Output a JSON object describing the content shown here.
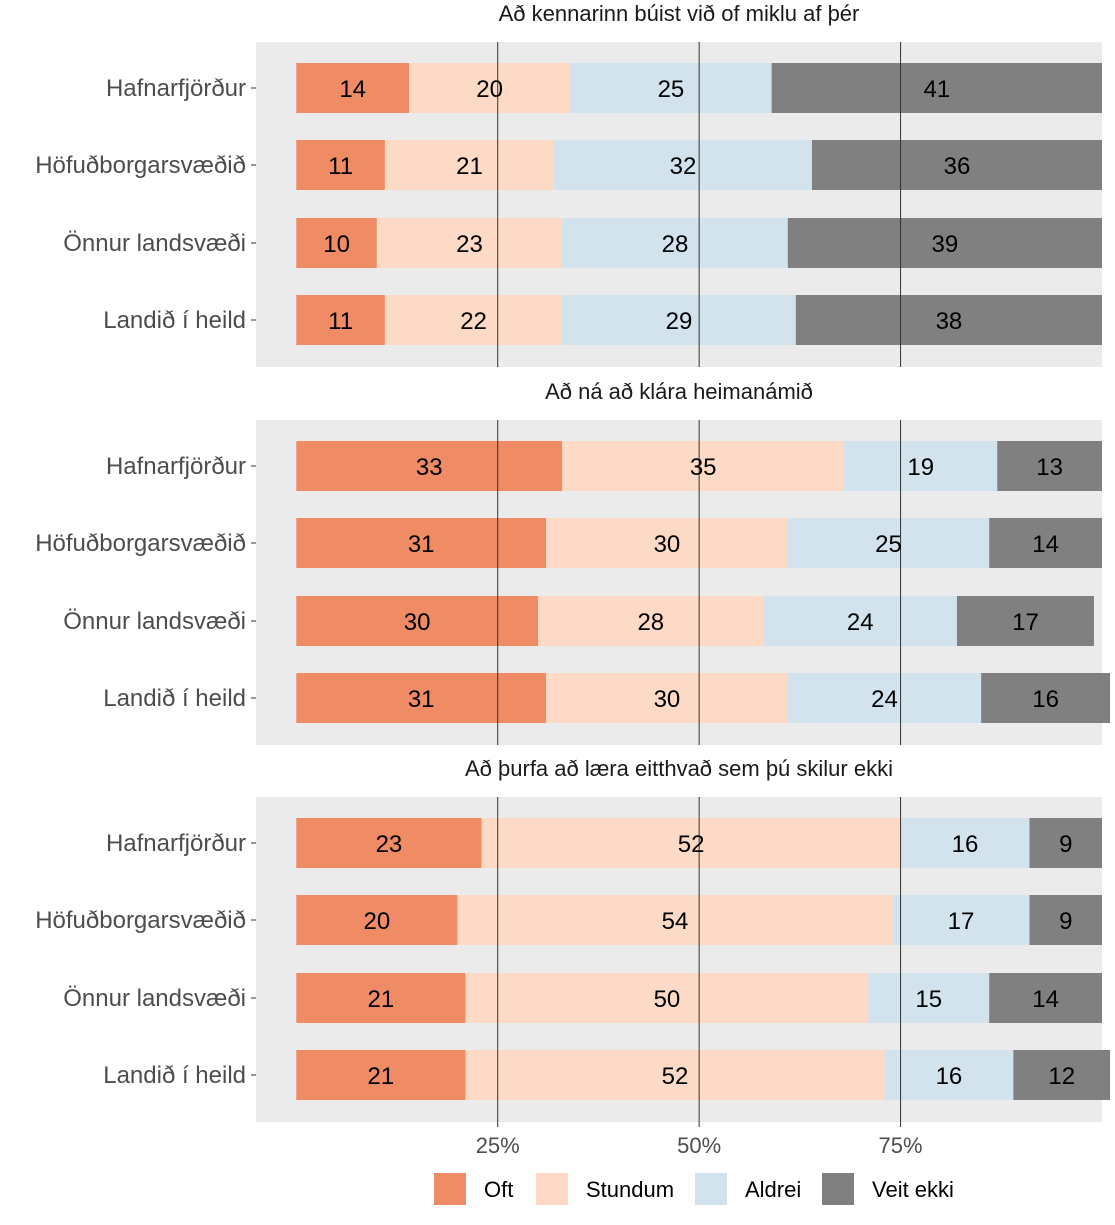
{
  "chart_data": {
    "type": "bar",
    "orientation": "horizontal",
    "stacked": true,
    "percent_scale": true,
    "categories": [
      "Hafnarfjörður",
      "Höfuðborgarsvæðið",
      "Önnur landsvæði",
      "Landið í heild"
    ],
    "xticks": [
      "25%",
      "50%",
      "75%"
    ],
    "xtick_values": [
      25,
      50,
      75
    ],
    "xlim": [
      -5,
      100
    ],
    "grid": "vertical major lines at tick positions",
    "legend": {
      "position": "bottom",
      "entries": [
        {
          "name": "Oft",
          "color": "#EF8C65"
        },
        {
          "name": "Stundum",
          "color": "#FCDAC6"
        },
        {
          "name": "Aldrei",
          "color": "#D2E3EE"
        },
        {
          "name": "Veit ekki",
          "color": "#808080"
        }
      ]
    },
    "panels": [
      {
        "title": "Að kennarinn búist við of miklu af þér",
        "series": [
          {
            "name": "Oft",
            "values": [
              14,
              11,
              10,
              11
            ]
          },
          {
            "name": "Stundum",
            "values": [
              20,
              21,
              23,
              22
            ]
          },
          {
            "name": "Aldrei",
            "values": [
              25,
              32,
              28,
              29
            ]
          },
          {
            "name": "Veit ekki",
            "values": [
              41,
              36,
              39,
              38
            ]
          }
        ]
      },
      {
        "title": "Að ná að klára heimanámið",
        "series": [
          {
            "name": "Oft",
            "values": [
              33,
              31,
              30,
              31
            ]
          },
          {
            "name": "Stundum",
            "values": [
              35,
              30,
              28,
              30
            ]
          },
          {
            "name": "Aldrei",
            "values": [
              19,
              25,
              24,
              24
            ]
          },
          {
            "name": "Veit ekki",
            "values": [
              13,
              14,
              17,
              16
            ]
          }
        ]
      },
      {
        "title": "Að þurfa að læra eitthvað sem þú skilur ekki",
        "series": [
          {
            "name": "Oft",
            "values": [
              23,
              20,
              21,
              21
            ]
          },
          {
            "name": "Stundum",
            "values": [
              52,
              54,
              50,
              52
            ]
          },
          {
            "name": "Aldrei",
            "values": [
              16,
              17,
              15,
              16
            ]
          },
          {
            "name": "Veit ekki",
            "values": [
              9,
              9,
              14,
              12
            ]
          }
        ]
      }
    ]
  }
}
